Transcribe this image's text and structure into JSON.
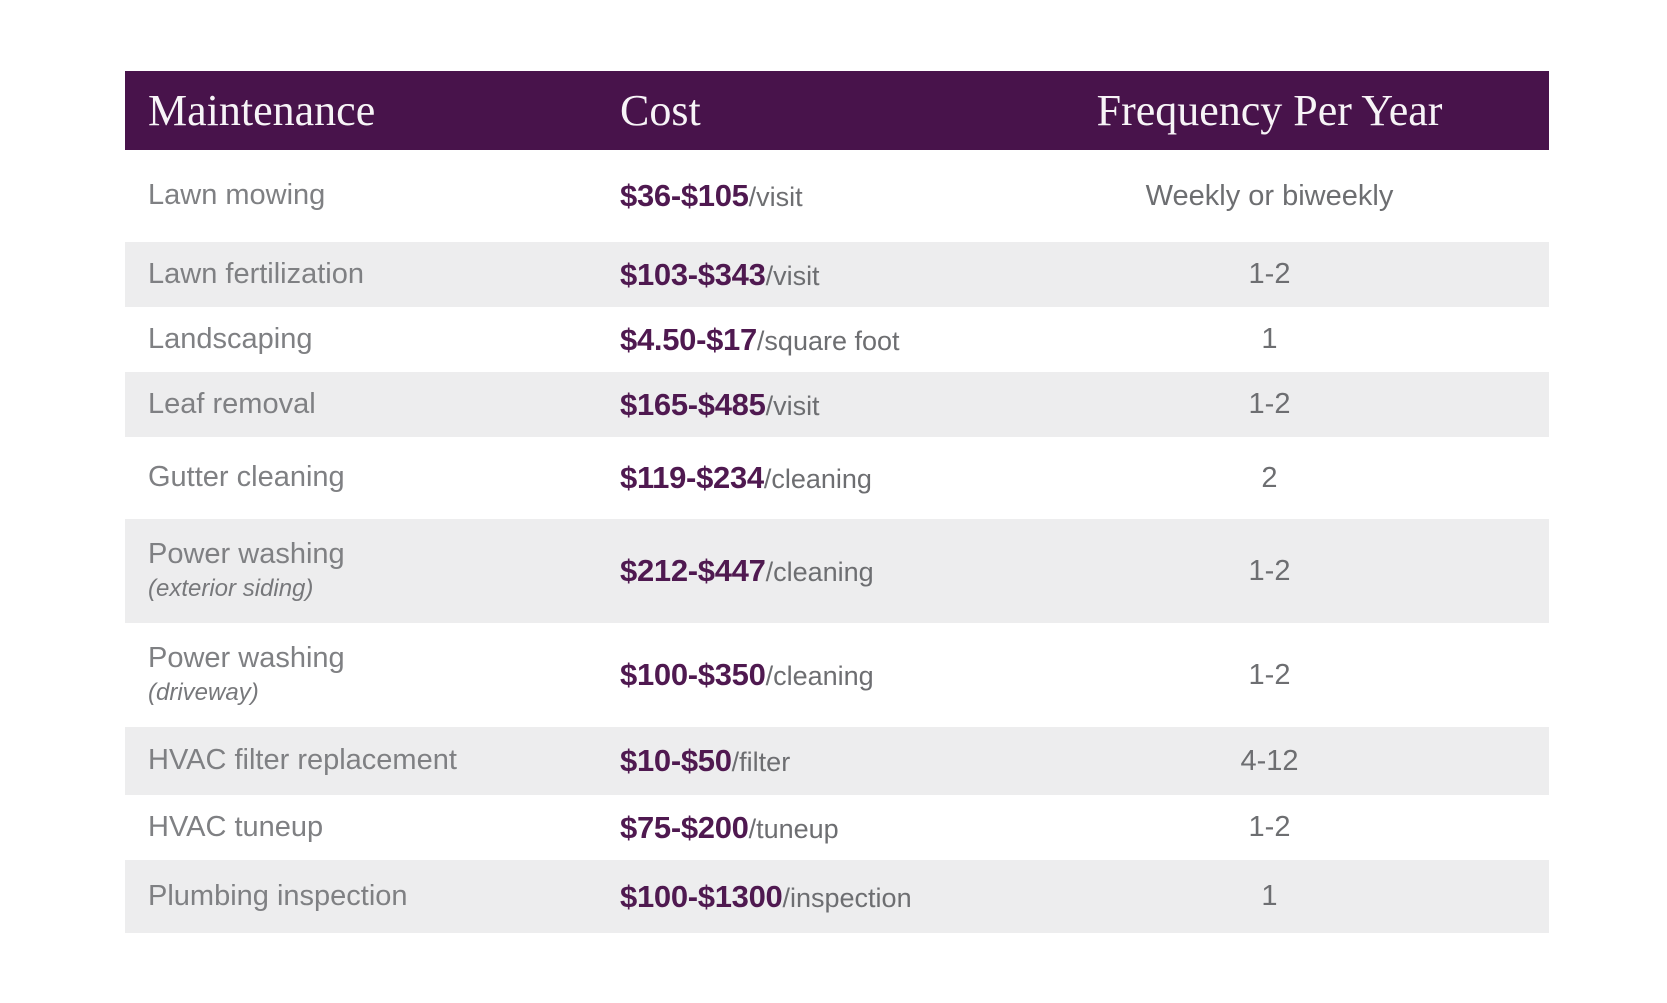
{
  "style": {
    "header_bg": "#48134b",
    "header_text": "#f7f4f7",
    "price_color": "#4f1950",
    "body_text_gray": "#7f8083",
    "secondary_gray": "#6d6e71",
    "row_alt_bg": "#ededee"
  },
  "chart_data": {
    "type": "table",
    "title": "",
    "columns": [
      "Maintenance",
      "Cost",
      "Frequency Per Year"
    ],
    "rows": [
      {
        "maintenance": "Lawn mowing",
        "sub": "",
        "cost": "$36-$105",
        "cost_unit": "/visit",
        "frequency": "Weekly or biweekly"
      },
      {
        "maintenance": "Lawn fertilization",
        "sub": "",
        "cost": "$103-$343",
        "cost_unit": "/visit",
        "frequency": "1-2"
      },
      {
        "maintenance": "Landscaping",
        "sub": "",
        "cost": "$4.50-$17",
        "cost_unit": "/square foot",
        "frequency": "1"
      },
      {
        "maintenance": "Leaf removal",
        "sub": "",
        "cost": "$165-$485",
        "cost_unit": "/visit",
        "frequency": "1-2"
      },
      {
        "maintenance": "Gutter cleaning",
        "sub": "",
        "cost": "$119-$234",
        "cost_unit": "/cleaning",
        "frequency": "2"
      },
      {
        "maintenance": "Power washing",
        "sub": "(exterior siding)",
        "cost": "$212-$447",
        "cost_unit": "/cleaning",
        "frequency": "1-2"
      },
      {
        "maintenance": "Power washing",
        "sub": "(driveway)",
        "cost": "$100-$350",
        "cost_unit": "/cleaning",
        "frequency": "1-2"
      },
      {
        "maintenance": "HVAC filter replacement",
        "sub": "",
        "cost": "$10-$50",
        "cost_unit": "/filter",
        "frequency": "4-12"
      },
      {
        "maintenance": "HVAC tuneup",
        "sub": "",
        "cost": "$75-$200",
        "cost_unit": "/tuneup",
        "frequency": "1-2"
      },
      {
        "maintenance": "Plumbing inspection",
        "sub": "",
        "cost": "$100-$1300",
        "cost_unit": "/inspection",
        "frequency": "1"
      }
    ]
  }
}
